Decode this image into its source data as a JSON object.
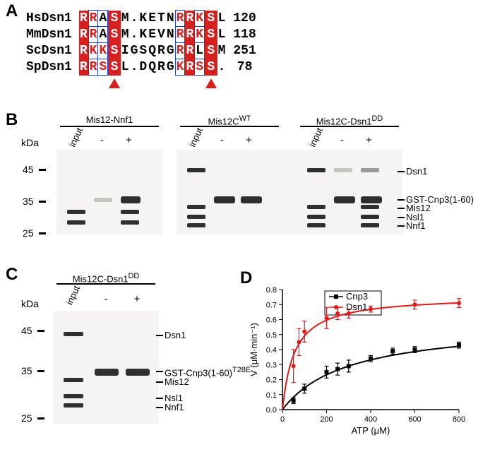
{
  "panelA": {
    "label": "A",
    "rows": [
      {
        "name": "HsDsn1",
        "seq": [
          "R",
          "R",
          "A",
          "S",
          "M",
          ".",
          "K",
          "E",
          "T",
          "N",
          "R",
          "R",
          "K",
          "S",
          "L"
        ],
        "num": "120"
      },
      {
        "name": "MmDsn1",
        "seq": [
          "R",
          "R",
          "A",
          "S",
          "M",
          ".",
          "K",
          "E",
          "V",
          "N",
          "R",
          "R",
          "K",
          "S",
          "L"
        ],
        "num": "118"
      },
      {
        "name": "ScDsn1",
        "seq": [
          "R",
          "K",
          "K",
          "S",
          "I",
          "G",
          "S",
          "Q",
          "R",
          "G",
          "R",
          "R",
          "L",
          "S",
          "M"
        ],
        "num": "251"
      },
      {
        "name": "SpDsn1",
        "seq": [
          "R",
          "R",
          "S",
          "S",
          "L",
          ".",
          "D",
          "Q",
          "R",
          "G",
          "K",
          "R",
          "S",
          "S",
          "."
        ],
        "num": "78"
      }
    ],
    "triangle_cols": [
      3,
      13
    ],
    "red_box_cols": [
      0,
      3,
      11,
      13
    ],
    "blue_border_red_cols": [
      1,
      2,
      10,
      12
    ],
    "fontsize_name": 18,
    "fontsize_res": 18,
    "color_red_box": "#d6201f",
    "color_blue_border": "#1a3fd6"
  },
  "panelB": {
    "label": "B",
    "groups": [
      {
        "title": "Mis12-Nnf1",
        "lanes": [
          "input",
          "-",
          "+"
        ]
      },
      {
        "title": "Mis12C^{WT}",
        "lanes": [
          "input",
          "-",
          "+"
        ]
      },
      {
        "title": "Mis12C-Dsn1^{DD}",
        "lanes": [
          "input",
          "-",
          "+"
        ]
      }
    ],
    "kda_marks": [
      {
        "v": "45",
        "y": 28
      },
      {
        "v": "35",
        "y": 73
      },
      {
        "v": "25",
        "y": 118
      }
    ],
    "right_labels": [
      {
        "text": "Dsn1",
        "y": 30
      },
      {
        "text": "GST-Cnp3(1-60)",
        "y": 70
      },
      {
        "text": "Mis12",
        "y": 82
      },
      {
        "text": "Nsl1",
        "y": 95
      },
      {
        "text": "Nnf1",
        "y": 107
      }
    ],
    "gel_bg": "#f5f4f2",
    "band_color": "#2f2f2f"
  },
  "panelC": {
    "label": "C",
    "title": "Mis12C-Dsn1^{DD}",
    "lanes": [
      "input",
      "-",
      "+"
    ],
    "kda_marks": [
      {
        "v": "45",
        "y": 28
      },
      {
        "v": "35",
        "y": 85
      },
      {
        "v": "25",
        "y": 152
      }
    ],
    "right_labels": [
      {
        "text": "Dsn1",
        "y": 34
      },
      {
        "text": "GST-Cnp3(1-60)^{T28E}",
        "y": 85
      },
      {
        "text": "Mis12",
        "y": 100
      },
      {
        "text": "Nsl1",
        "y": 123
      },
      {
        "text": "Nnf1",
        "y": 136
      }
    ]
  },
  "panelD": {
    "label": "D",
    "xlabel": "ATP (μM)",
    "ylabel": "V (μM·min⁻¹)",
    "xlim": [
      0,
      800
    ],
    "ylim": [
      0,
      0.8
    ],
    "xticks": [
      0,
      200,
      400,
      600,
      800
    ],
    "yticks": [
      0,
      0.1,
      0.2,
      0.3,
      0.4,
      0.5,
      0.6,
      0.7,
      0.8
    ],
    "series": [
      {
        "name": "Cnp3",
        "color": "#000000",
        "marker": "square",
        "points": [
          {
            "x": 50,
            "y": 0.06,
            "err": 0.02
          },
          {
            "x": 100,
            "y": 0.14,
            "err": 0.03
          },
          {
            "x": 200,
            "y": 0.25,
            "err": 0.04
          },
          {
            "x": 250,
            "y": 0.27,
            "err": 0.04
          },
          {
            "x": 300,
            "y": 0.29,
            "err": 0.04
          },
          {
            "x": 400,
            "y": 0.34,
            "err": 0.02
          },
          {
            "x": 500,
            "y": 0.39,
            "err": 0.02
          },
          {
            "x": 600,
            "y": 0.4,
            "err": 0.02
          },
          {
            "x": 800,
            "y": 0.43,
            "err": 0.02
          }
        ],
        "curve": {
          "vmax": 0.58,
          "km": 300
        }
      },
      {
        "name": "Dsn1",
        "color": "#e11919",
        "marker": "circle",
        "points": [
          {
            "x": 50,
            "y": 0.29,
            "err": 0.11
          },
          {
            "x": 75,
            "y": 0.45,
            "err": 0.09
          },
          {
            "x": 100,
            "y": 0.52,
            "err": 0.07
          },
          {
            "x": 200,
            "y": 0.61,
            "err": 0.07
          },
          {
            "x": 250,
            "y": 0.64,
            "err": 0.04
          },
          {
            "x": 300,
            "y": 0.64,
            "err": 0.03
          },
          {
            "x": 400,
            "y": 0.67,
            "err": 0.02
          },
          {
            "x": 600,
            "y": 0.7,
            "err": 0.03
          },
          {
            "x": 800,
            "y": 0.71,
            "err": 0.03
          }
        ],
        "curve": {
          "vmax": 0.76,
          "km": 55
        }
      }
    ],
    "legend_font": 13,
    "axis_font": 13,
    "tick_font": 11,
    "bg": "#ffffff",
    "axis_color": "#000000",
    "line_width": 2,
    "marker_size": 6
  },
  "common": {
    "kda_text": "kDa",
    "input_text": "input"
  }
}
